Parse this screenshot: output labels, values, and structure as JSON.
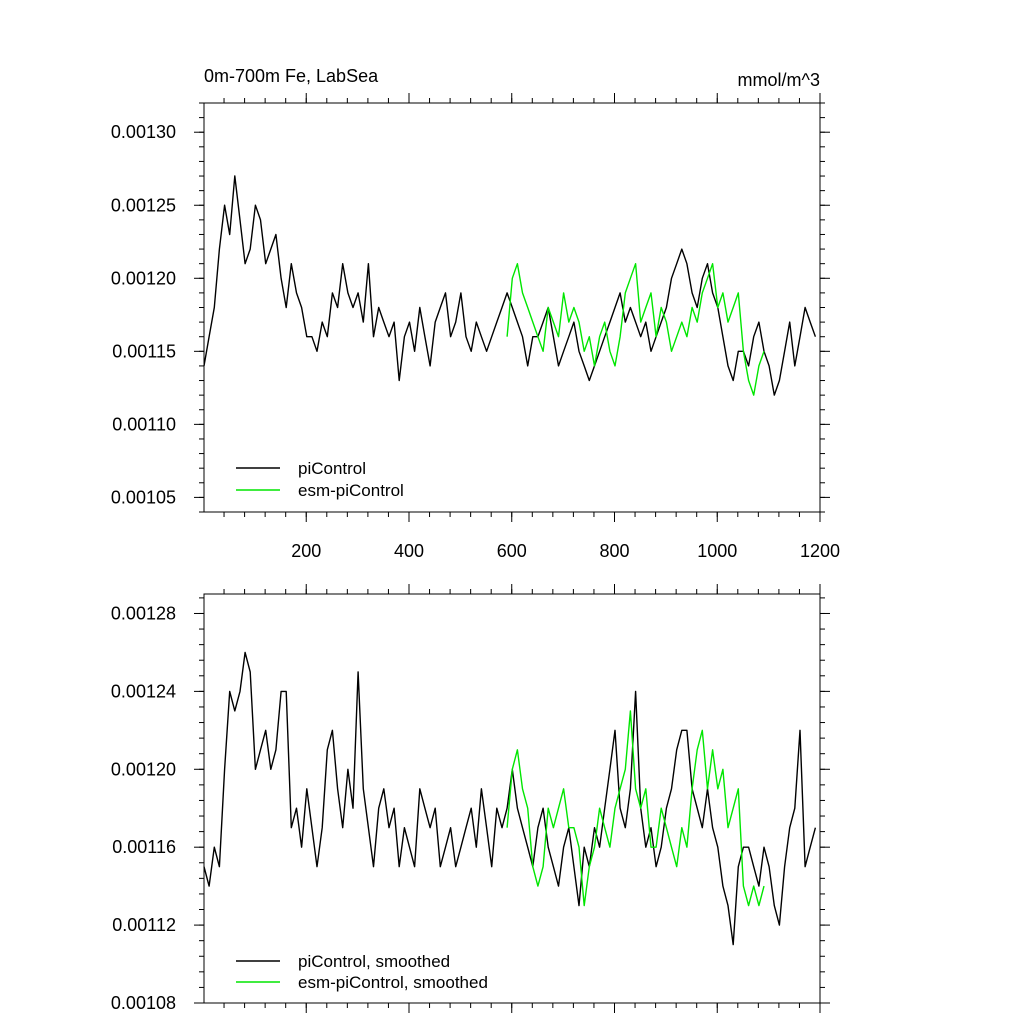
{
  "chart_data": [
    {
      "type": "line",
      "title_left": "0m-700m Fe, LabSea",
      "title_right": "mmol/m^3",
      "xlim": [
        1,
        1200
      ],
      "ylim": [
        0.00104,
        0.00132
      ],
      "x_ticks": [
        200,
        400,
        600,
        800,
        1000,
        1200
      ],
      "x_tick_labels": [
        "200",
        "400",
        "600",
        "800",
        "1000",
        "1200"
      ],
      "y_ticks": [
        0.00105,
        0.0011,
        0.00115,
        0.0012,
        0.00125,
        0.0013
      ],
      "y_tick_labels": [
        "0.00105",
        "0.00110",
        "0.00115",
        "0.00120",
        "0.00125",
        "0.00130"
      ],
      "legend_position": "bottom-left",
      "series": [
        {
          "name": "piControl",
          "color": "#000000",
          "x_start": 1,
          "x_step": 10,
          "values": [
            0.00114,
            0.00116,
            0.00118,
            0.00122,
            0.00125,
            0.00123,
            0.00127,
            0.00124,
            0.00121,
            0.00122,
            0.00125,
            0.00124,
            0.00121,
            0.00122,
            0.00123,
            0.0012,
            0.00118,
            0.00121,
            0.00119,
            0.00118,
            0.00116,
            0.00116,
            0.00115,
            0.00117,
            0.00116,
            0.00119,
            0.00118,
            0.00121,
            0.00119,
            0.00118,
            0.00119,
            0.00117,
            0.00121,
            0.00116,
            0.00118,
            0.00117,
            0.00116,
            0.00117,
            0.00113,
            0.00116,
            0.00117,
            0.00115,
            0.00118,
            0.00116,
            0.00114,
            0.00117,
            0.00118,
            0.00119,
            0.00116,
            0.00117,
            0.00119,
            0.00116,
            0.00115,
            0.00117,
            0.00116,
            0.00115,
            0.00116,
            0.00117,
            0.00118,
            0.00119,
            0.00118,
            0.00117,
            0.00116,
            0.00114,
            0.00116,
            0.00116,
            0.00117,
            0.00118,
            0.00116,
            0.00114,
            0.00115,
            0.00116,
            0.00117,
            0.00115,
            0.00114,
            0.00113,
            0.00114,
            0.00115,
            0.00116,
            0.00117,
            0.00118,
            0.00119,
            0.00117,
            0.00118,
            0.00117,
            0.00116,
            0.00117,
            0.00115,
            0.00116,
            0.00117,
            0.00118,
            0.0012,
            0.00121,
            0.00122,
            0.00121,
            0.00119,
            0.00118,
            0.0012,
            0.00121,
            0.00119,
            0.00118,
            0.00116,
            0.00114,
            0.00113,
            0.00115,
            0.00115,
            0.00114,
            0.00116,
            0.00117,
            0.00115,
            0.00114,
            0.00112,
            0.00113,
            0.00115,
            0.00117,
            0.00114,
            0.00116,
            0.00118,
            0.00117,
            0.00116
          ]
        },
        {
          "name": "esm-piControl",
          "color": "#00e600",
          "x_start": 591,
          "x_step": 10,
          "values": [
            0.00116,
            0.0012,
            0.00121,
            0.00119,
            0.00118,
            0.00117,
            0.00116,
            0.00115,
            0.00118,
            0.00117,
            0.00116,
            0.00119,
            0.00117,
            0.00118,
            0.00117,
            0.00115,
            0.00116,
            0.00114,
            0.00116,
            0.00117,
            0.00115,
            0.00114,
            0.00116,
            0.00119,
            0.0012,
            0.00121,
            0.00117,
            0.00118,
            0.00119,
            0.00116,
            0.00118,
            0.00117,
            0.00115,
            0.00116,
            0.00117,
            0.00116,
            0.00118,
            0.00117,
            0.00119,
            0.0012,
            0.00121,
            0.00118,
            0.00119,
            0.00117,
            0.00118,
            0.00119,
            0.00115,
            0.00113,
            0.00112,
            0.00114,
            0.00115
          ]
        }
      ]
    },
    {
      "type": "line",
      "xlim": [
        1,
        1200
      ],
      "ylim": [
        0.00108,
        0.00129
      ],
      "x_ticks": [
        200,
        400,
        600,
        800,
        1000,
        1200
      ],
      "y_ticks": [
        0.00108,
        0.00112,
        0.00116,
        0.0012,
        0.00124,
        0.00128
      ],
      "y_tick_labels": [
        "0.00108",
        "0.00112",
        "0.00116",
        "0.00120",
        "0.00124",
        "0.00128"
      ],
      "legend_position": "bottom-left",
      "series": [
        {
          "name": "piControl, smoothed",
          "color": "#000000",
          "x_start": 1,
          "x_step": 10,
          "values": [
            0.00115,
            0.00114,
            0.00116,
            0.00115,
            0.0012,
            0.00124,
            0.00123,
            0.00124,
            0.00126,
            0.00125,
            0.0012,
            0.00121,
            0.00122,
            0.0012,
            0.00121,
            0.00124,
            0.00124,
            0.00117,
            0.00118,
            0.00116,
            0.00119,
            0.00117,
            0.00115,
            0.00117,
            0.00121,
            0.00122,
            0.00119,
            0.00117,
            0.0012,
            0.00118,
            0.00125,
            0.00119,
            0.00117,
            0.00115,
            0.00118,
            0.00119,
            0.00117,
            0.00118,
            0.00115,
            0.00117,
            0.00116,
            0.00115,
            0.00119,
            0.00118,
            0.00117,
            0.00118,
            0.00115,
            0.00116,
            0.00117,
            0.00115,
            0.00116,
            0.00117,
            0.00118,
            0.00116,
            0.00119,
            0.00117,
            0.00115,
            0.00118,
            0.00117,
            0.00118,
            0.0012,
            0.00118,
            0.00117,
            0.00116,
            0.00115,
            0.00117,
            0.00118,
            0.00116,
            0.00115,
            0.00114,
            0.00116,
            0.00117,
            0.00115,
            0.00113,
            0.00116,
            0.00115,
            0.00117,
            0.00116,
            0.00118,
            0.0012,
            0.00122,
            0.00118,
            0.00117,
            0.00119,
            0.00124,
            0.00118,
            0.00116,
            0.00117,
            0.00115,
            0.00116,
            0.00118,
            0.00119,
            0.00121,
            0.00122,
            0.00122,
            0.00119,
            0.00118,
            0.00117,
            0.00119,
            0.00117,
            0.00116,
            0.00114,
            0.00113,
            0.00111,
            0.00115,
            0.00116,
            0.00116,
            0.00115,
            0.00114,
            0.00116,
            0.00115,
            0.00113,
            0.00112,
            0.00115,
            0.00117,
            0.00118,
            0.00122,
            0.00115,
            0.00116,
            0.00117
          ]
        },
        {
          "name": "esm-piControl, smoothed",
          "color": "#00e600",
          "x_start": 591,
          "x_step": 10,
          "values": [
            0.00117,
            0.0012,
            0.00121,
            0.00119,
            0.00118,
            0.00115,
            0.00114,
            0.00115,
            0.00118,
            0.00117,
            0.00118,
            0.00119,
            0.00117,
            0.00117,
            0.00116,
            0.00113,
            0.00115,
            0.00116,
            0.00118,
            0.00117,
            0.00116,
            0.00118,
            0.00119,
            0.0012,
            0.00123,
            0.00119,
            0.00118,
            0.00119,
            0.00116,
            0.00116,
            0.00118,
            0.00117,
            0.00116,
            0.00115,
            0.00117,
            0.00116,
            0.00119,
            0.00121,
            0.00122,
            0.00119,
            0.00121,
            0.00119,
            0.0012,
            0.00117,
            0.00118,
            0.00119,
            0.00114,
            0.00113,
            0.00114,
            0.00113,
            0.00114
          ]
        }
      ]
    }
  ]
}
